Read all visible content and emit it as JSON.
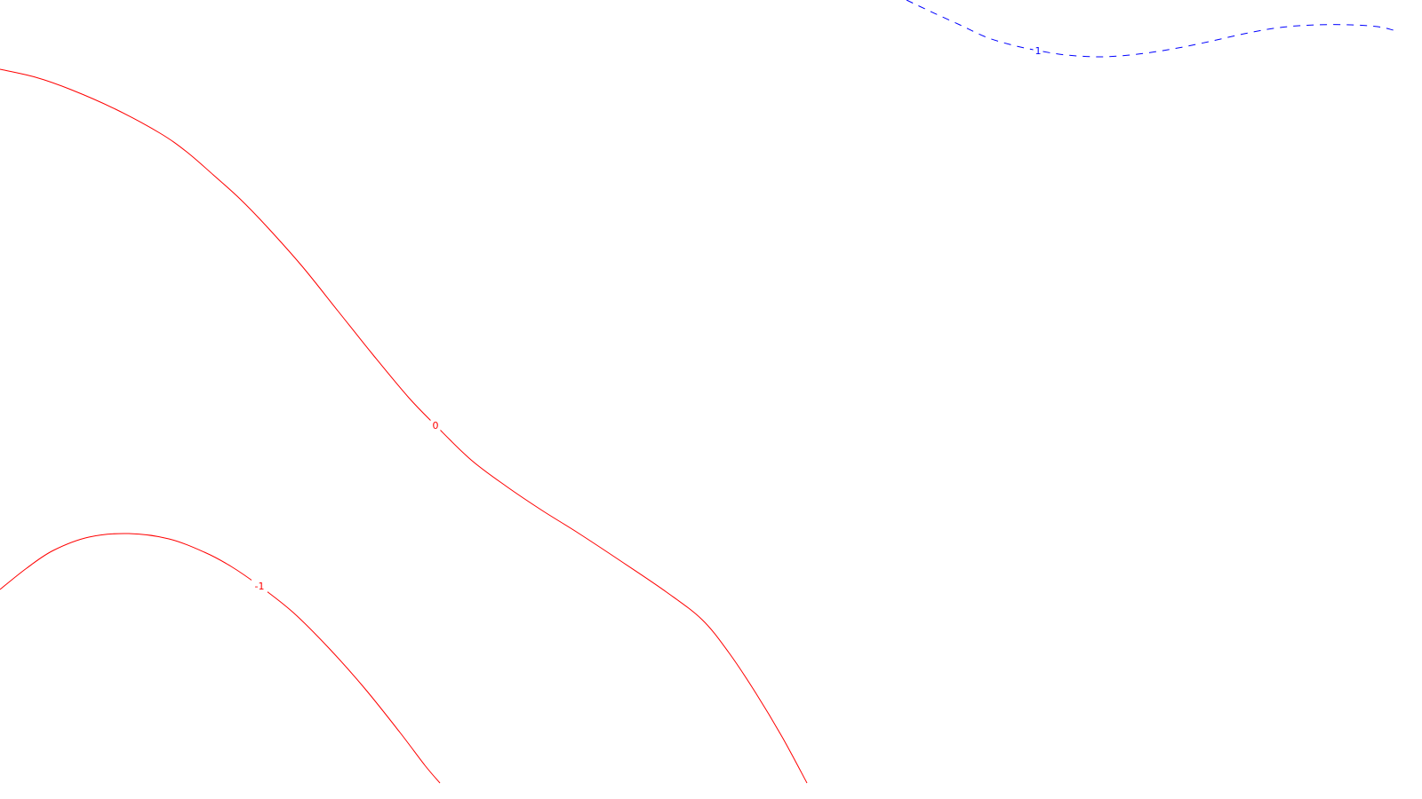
{
  "chart_data": {
    "type": "contour",
    "title": "",
    "xlabel": "",
    "ylabel": "",
    "grid": false,
    "legend": "none",
    "levels": [
      {
        "level": 1,
        "label": "1",
        "color": "#0000ff",
        "dashed": true,
        "points": [
          [
            1020,
            0
          ],
          [
            1045,
            12
          ],
          [
            1080,
            28
          ],
          [
            1110,
            42
          ],
          [
            1140,
            51
          ],
          [
            1168,
            57
          ],
          [
            1200,
            62
          ],
          [
            1240,
            64
          ],
          [
            1280,
            61
          ],
          [
            1320,
            55
          ],
          [
            1360,
            47
          ],
          [
            1400,
            38
          ],
          [
            1440,
            31
          ],
          [
            1480,
            28
          ],
          [
            1520,
            28
          ],
          [
            1550,
            30
          ],
          [
            1568,
            34
          ]
        ]
      },
      {
        "level": 0,
        "label": "0",
        "color": "#ff0000",
        "dashed": false,
        "points": [
          [
            0,
            78
          ],
          [
            40,
            87
          ],
          [
            80,
            101
          ],
          [
            130,
            123
          ],
          [
            180,
            150
          ],
          [
            210,
            171
          ],
          [
            240,
            197
          ],
          [
            270,
            224
          ],
          [
            300,
            255
          ],
          [
            340,
            300
          ],
          [
            380,
            350
          ],
          [
            420,
            400
          ],
          [
            460,
            448
          ],
          [
            490,
            479
          ],
          [
            530,
            518
          ],
          [
            570,
            548
          ],
          [
            610,
            575
          ],
          [
            650,
            600
          ],
          [
            700,
            633
          ],
          [
            750,
            667
          ],
          [
            790,
            698
          ],
          [
            820,
            735
          ],
          [
            850,
            780
          ],
          [
            880,
            830
          ],
          [
            908,
            882
          ]
        ]
      },
      {
        "level": -1,
        "label": "-1",
        "color": "#ff0000",
        "dashed": false,
        "points": [
          [
            0,
            664
          ],
          [
            30,
            640
          ],
          [
            60,
            620
          ],
          [
            100,
            605
          ],
          [
            145,
            601
          ],
          [
            190,
            607
          ],
          [
            230,
            622
          ],
          [
            260,
            638
          ],
          [
            292,
            660
          ],
          [
            330,
            690
          ],
          [
            370,
            730
          ],
          [
            410,
            775
          ],
          [
            450,
            825
          ],
          [
            478,
            862
          ],
          [
            495,
            882
          ]
        ]
      }
    ],
    "label_positions": {
      "1": [
        1168,
        57
      ],
      "0": [
        490,
        479
      ],
      "-1": [
        292,
        660
      ]
    }
  }
}
